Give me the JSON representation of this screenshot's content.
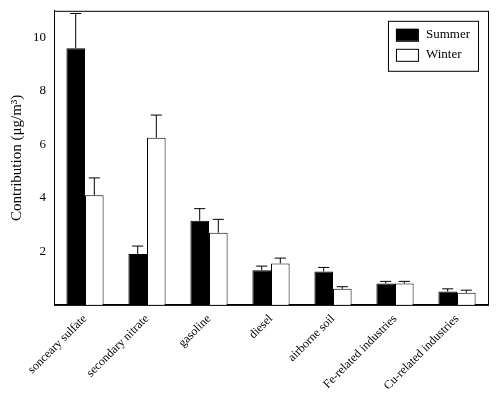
{
  "chart_data": {
    "type": "bar",
    "categories": [
      "sonceary sulfate",
      "secondary nitrate",
      "gasoline",
      "diesel",
      "airborne soil",
      "Fe-related industries",
      "Cu-related industries"
    ],
    "y_label": "Contribution (μg/m³)",
    "series": [
      {
        "name": "Summer",
        "color": "#000000",
        "values": [
          9.6,
          1.9,
          3.15,
          1.3,
          1.25,
          0.8,
          0.5
        ],
        "errors": [
          1.3,
          0.3,
          0.45,
          0.15,
          0.15,
          0.08,
          0.1
        ]
      },
      {
        "name": "Winter",
        "color": "#ffffff",
        "values": [
          4.1,
          6.25,
          2.7,
          1.55,
          0.6,
          0.8,
          0.45
        ],
        "errors": [
          0.65,
          0.85,
          0.5,
          0.2,
          0.08,
          0.08,
          0.1
        ]
      }
    ],
    "ylim": [
      0,
      11
    ],
    "yticks": [
      2,
      4,
      6,
      8,
      10
    ],
    "grid": false,
    "legend": "upper right"
  }
}
